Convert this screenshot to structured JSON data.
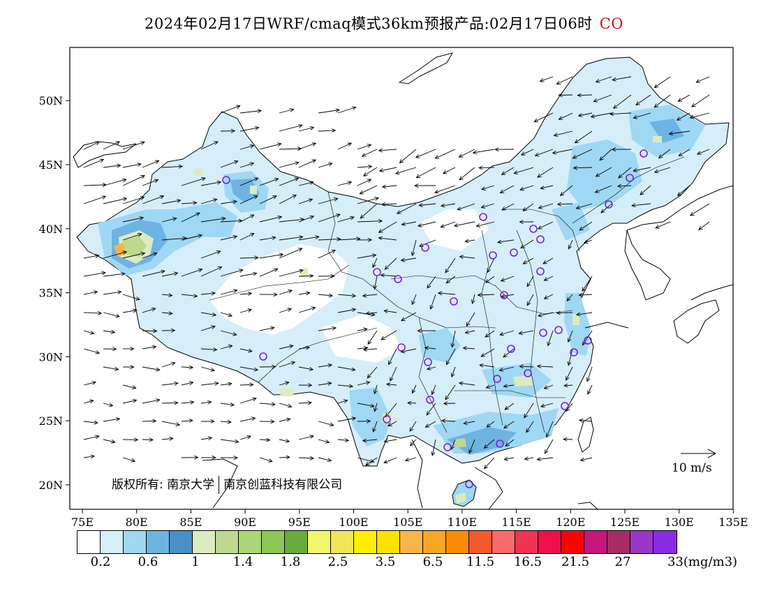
{
  "title": {
    "main": "2024年02月17日WRF/cmaq模式36km预报产品:02月17日06时",
    "species": "CO",
    "species_color": "#d11111"
  },
  "axes": {
    "lon_labels": [
      "75E",
      "80E",
      "85E",
      "90E",
      "95E",
      "100E",
      "105E",
      "110E",
      "115E",
      "120E",
      "125E",
      "130E",
      "135E"
    ],
    "lat_labels": [
      "20N",
      "25N",
      "30N",
      "35N",
      "40N",
      "45N",
      "50N"
    ]
  },
  "copyright": {
    "label": "版权所有:",
    "org1": "南京大学",
    "org2": "南京创蓝科技有限公司"
  },
  "wind_scale": {
    "label": "10 m/s"
  },
  "colorbar": {
    "colors": [
      "#ffffff",
      "#d6eefa",
      "#9fd8f4",
      "#6eb3e2",
      "#4a8fc8",
      "#dcebbf",
      "#bcd98e",
      "#a9d676",
      "#8cc855",
      "#6aab3d",
      "#f2f86c",
      "#f0e65a",
      "#ffee00",
      "#ffe100",
      "#f9b548",
      "#f9a624",
      "#fb8c00",
      "#f15a2d",
      "#fb6a6a",
      "#ee3355",
      "#ef0f4a",
      "#ff0000",
      "#c5177e",
      "#a82d62",
      "#9a37c7",
      "#8a2be2"
    ],
    "labels": [
      "0.2",
      "0.6",
      "1",
      "1.4",
      "1.8",
      "2.5",
      "3.5",
      "6.5",
      "11.5",
      "16.5",
      "21.5",
      "27",
      "33(mg/m3)"
    ],
    "unit": "mg/m3"
  }
}
